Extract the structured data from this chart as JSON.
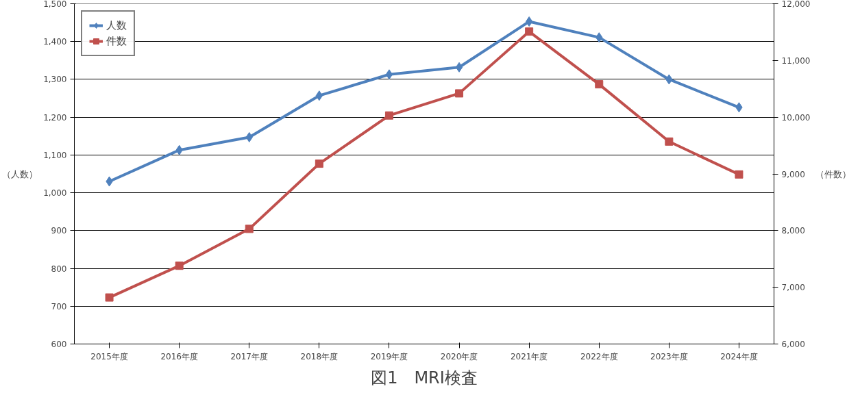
{
  "chart_data": {
    "type": "line",
    "title": "図1　MRI検査",
    "ylabel": "（人数）",
    "y2label": "（件数）",
    "categories": [
      "2015年度",
      "2016年度",
      "2017年度",
      "2018年度",
      "2019年度",
      "2020年度",
      "2021年度",
      "2022年度",
      "2023年度",
      "2024年度"
    ],
    "series": [
      {
        "name": "人数",
        "color": "#4f81bd",
        "marker": "diamond",
        "values": [
          1030,
          1113,
          1147,
          1257,
          1313,
          1332,
          1453,
          1411,
          1300,
          1226
        ]
      },
      {
        "name": "件数",
        "color": "#c0504d",
        "marker": "square",
        "axis": "y2",
        "values": [
          6820,
          7380,
          8030,
          9180,
          10030,
          10420,
          11510,
          10580,
          9570,
          8990
        ]
      }
    ],
    "ylim": [
      600,
      1500
    ],
    "yticks": [
      {
        "value": 600,
        "label": "600"
      },
      {
        "value": 700,
        "label": "700"
      },
      {
        "value": 800,
        "label": "800"
      },
      {
        "value": 900,
        "label": "900"
      },
      {
        "value": 1000,
        "label": "1,000"
      },
      {
        "value": 1100,
        "label": "1,100"
      },
      {
        "value": 1200,
        "label": "1,200"
      },
      {
        "value": 1300,
        "label": "1,300"
      },
      {
        "value": 1400,
        "label": "1,400"
      },
      {
        "value": 1500,
        "label": "1,500"
      }
    ],
    "y2lim": [
      6000,
      12000
    ],
    "y2ticks": [
      {
        "value": 6000,
        "label": "6,000"
      },
      {
        "value": 7000,
        "label": "7,000"
      },
      {
        "value": 8000,
        "label": "8,000"
      },
      {
        "value": 9000,
        "label": "9,000"
      },
      {
        "value": 10000,
        "label": "10,000"
      },
      {
        "value": 11000,
        "label": "11,000"
      },
      {
        "value": 12000,
        "label": "12,000"
      }
    ],
    "grid": "y",
    "legend": "top left",
    "line_style": "solid"
  }
}
